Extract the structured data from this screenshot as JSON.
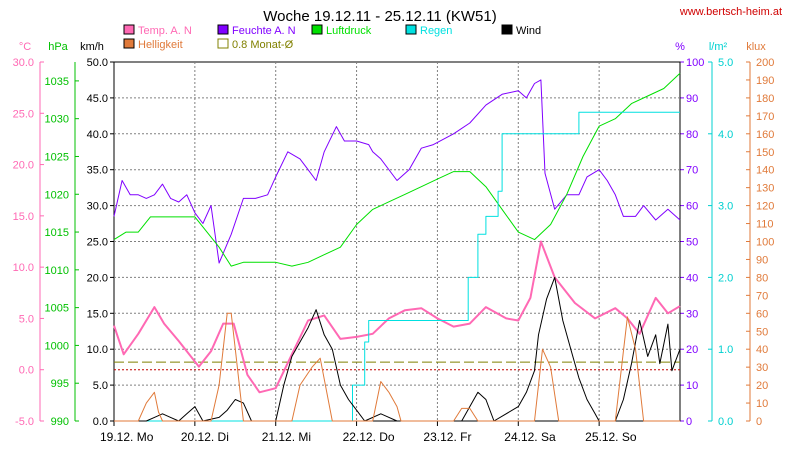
{
  "chart_data": {
    "type": "line",
    "title": "Woche 19.12.11 - 25.12.11 (KW51)",
    "source": "www.bertsch-heim.at",
    "axes": {
      "temp": {
        "unit": "°C",
        "color": "#ff69b4",
        "ticks": [
          "-5.0",
          "0.0",
          "5.0",
          "10.0",
          "15.0",
          "20.0",
          "25.0",
          "30.0"
        ],
        "range": [
          -5,
          30
        ]
      },
      "pressure": {
        "unit": "hPa",
        "color": "#00c000",
        "ticks": [
          "990",
          "995",
          "1000",
          "1005",
          "1010",
          "1015",
          "1020",
          "1025",
          "1030",
          "1035"
        ],
        "range": [
          990,
          1037.5
        ]
      },
      "wind": {
        "unit": "km/h",
        "color": "#000000",
        "ticks": [
          "0.0",
          "5.0",
          "10.0",
          "15.0",
          "20.0",
          "25.0",
          "30.0",
          "35.0",
          "40.0",
          "45.0",
          "50.0"
        ],
        "range": [
          0,
          50
        ]
      },
      "humidity": {
        "unit": "%",
        "color": "#8000ff",
        "ticks": [
          "0",
          "10",
          "20",
          "30",
          "40",
          "50",
          "60",
          "70",
          "80",
          "90",
          "100"
        ],
        "range": [
          0,
          100
        ]
      },
      "rain": {
        "unit": "l/m²",
        "color": "#00d0d0",
        "ticks": [
          "0.0",
          "1.0",
          "2.0",
          "3.0",
          "4.0",
          "5.0"
        ],
        "range": [
          0,
          5
        ]
      },
      "light": {
        "unit": "klux",
        "color": "#e07a3a",
        "ticks": [
          "0",
          "10",
          "20",
          "30",
          "40",
          "50",
          "60",
          "70",
          "80",
          "90",
          "100",
          "110",
          "120",
          "130",
          "140",
          "150",
          "160",
          "170",
          "180",
          "190",
          "200"
        ],
        "range": [
          0,
          200
        ]
      }
    },
    "x_labels": [
      "19.12. Mo",
      "20.12. Di",
      "21.12. Mi",
      "22.12. Do",
      "23.12. Fr",
      "24.12. Sa",
      "25.12. So"
    ],
    "x_unit": "day",
    "x_range": [
      0,
      7
    ],
    "legend": [
      {
        "label": "Temp. A. N",
        "color": "#ff69b4"
      },
      {
        "label": "Helligkeit",
        "color": "#e07a3a"
      },
      {
        "label": "Feuchte A. N",
        "color": "#8000ff"
      },
      {
        "label": "0.8 Monat-Ø",
        "color": "#808000"
      },
      {
        "label": "Luftdruck",
        "color": "#00e000"
      },
      {
        "label": "Regen",
        "color": "#00e0e0"
      },
      {
        "label": "Wind",
        "color": "#000000"
      }
    ],
    "reference_lines": [
      {
        "name": "0.8 Monat-Ø",
        "axis": "wind",
        "value": 8.2,
        "color": "#808000",
        "style": "dashed"
      },
      {
        "name": "Temp 0°C",
        "axis": "temp",
        "value": 0,
        "color": "#c00000",
        "style": "dotted"
      }
    ],
    "series": [
      {
        "name": "Temp. A. N",
        "axis": "temp",
        "color": "#ff69b4",
        "width": 2,
        "points": [
          [
            0,
            4.3
          ],
          [
            0.12,
            1.5
          ],
          [
            0.3,
            3.5
          ],
          [
            0.5,
            6.1
          ],
          [
            0.62,
            4.5
          ],
          [
            0.8,
            2.8
          ],
          [
            1.05,
            0.3
          ],
          [
            1.2,
            1.8
          ],
          [
            1.35,
            4.5
          ],
          [
            1.48,
            4.5
          ],
          [
            1.65,
            -0.5
          ],
          [
            1.8,
            -2.2
          ],
          [
            2.0,
            -1.8
          ],
          [
            2.2,
            1.5
          ],
          [
            2.4,
            4.8
          ],
          [
            2.6,
            5.3
          ],
          [
            2.8,
            3.0
          ],
          [
            3.0,
            3.2
          ],
          [
            3.2,
            3.5
          ],
          [
            3.4,
            5.0
          ],
          [
            3.6,
            5.8
          ],
          [
            3.8,
            6.0
          ],
          [
            4.0,
            5.0
          ],
          [
            4.2,
            4.2
          ],
          [
            4.4,
            4.5
          ],
          [
            4.6,
            6.1
          ],
          [
            4.85,
            5.0
          ],
          [
            5.0,
            4.8
          ],
          [
            5.15,
            7.0
          ],
          [
            5.28,
            12.5
          ],
          [
            5.45,
            9.0
          ],
          [
            5.7,
            6.5
          ],
          [
            5.95,
            5.0
          ],
          [
            6.2,
            6.0
          ],
          [
            6.35,
            5.0
          ],
          [
            6.5,
            3.5
          ],
          [
            6.7,
            7.0
          ],
          [
            6.85,
            5.5
          ],
          [
            7.0,
            6.2
          ]
        ]
      },
      {
        "name": "Feuchte A. N",
        "axis": "humidity",
        "color": "#8000ff",
        "width": 1,
        "points": [
          [
            0,
            57
          ],
          [
            0.1,
            67
          ],
          [
            0.2,
            63
          ],
          [
            0.3,
            63
          ],
          [
            0.4,
            62
          ],
          [
            0.5,
            63
          ],
          [
            0.6,
            66
          ],
          [
            0.7,
            62
          ],
          [
            0.8,
            61
          ],
          [
            0.9,
            63
          ],
          [
            1.0,
            58
          ],
          [
            1.1,
            55
          ],
          [
            1.2,
            60
          ],
          [
            1.3,
            44
          ],
          [
            1.45,
            52
          ],
          [
            1.6,
            62
          ],
          [
            1.75,
            62
          ],
          [
            1.9,
            63
          ],
          [
            2.0,
            68
          ],
          [
            2.15,
            75
          ],
          [
            2.3,
            73
          ],
          [
            2.4,
            70
          ],
          [
            2.5,
            67
          ],
          [
            2.6,
            75
          ],
          [
            2.75,
            82
          ],
          [
            2.85,
            78
          ],
          [
            3.0,
            78
          ],
          [
            3.15,
            77
          ],
          [
            3.2,
            75
          ],
          [
            3.3,
            73
          ],
          [
            3.5,
            67
          ],
          [
            3.65,
            70
          ],
          [
            3.8,
            76
          ],
          [
            3.95,
            77
          ],
          [
            4.2,
            80
          ],
          [
            4.4,
            83
          ],
          [
            4.6,
            88
          ],
          [
            4.8,
            91
          ],
          [
            5.0,
            92
          ],
          [
            5.1,
            90
          ],
          [
            5.2,
            94
          ],
          [
            5.28,
            95
          ],
          [
            5.33,
            69
          ],
          [
            5.45,
            59
          ],
          [
            5.6,
            63
          ],
          [
            5.75,
            63
          ],
          [
            5.85,
            68
          ],
          [
            6.0,
            70
          ],
          [
            6.1,
            67
          ],
          [
            6.2,
            63
          ],
          [
            6.3,
            57
          ],
          [
            6.45,
            57
          ],
          [
            6.55,
            60
          ],
          [
            6.7,
            56
          ],
          [
            6.85,
            59
          ],
          [
            7.0,
            56
          ]
        ]
      },
      {
        "name": "Luftdruck",
        "axis": "pressure",
        "color": "#00e000",
        "width": 1,
        "points": [
          [
            0,
            1014
          ],
          [
            0.15,
            1015
          ],
          [
            0.3,
            1015
          ],
          [
            0.45,
            1017
          ],
          [
            0.6,
            1017
          ],
          [
            0.8,
            1017
          ],
          [
            1.0,
            1017
          ],
          [
            1.15,
            1015
          ],
          [
            1.3,
            1013
          ],
          [
            1.45,
            1010.5
          ],
          [
            1.6,
            1011
          ],
          [
            1.8,
            1011
          ],
          [
            2.0,
            1011
          ],
          [
            2.2,
            1010.5
          ],
          [
            2.4,
            1011
          ],
          [
            2.6,
            1012
          ],
          [
            2.8,
            1013
          ],
          [
            3.0,
            1016
          ],
          [
            3.2,
            1018
          ],
          [
            3.4,
            1019
          ],
          [
            3.6,
            1020
          ],
          [
            3.8,
            1021
          ],
          [
            4.0,
            1022
          ],
          [
            4.2,
            1023
          ],
          [
            4.4,
            1023
          ],
          [
            4.6,
            1021
          ],
          [
            4.8,
            1018
          ],
          [
            5.0,
            1015
          ],
          [
            5.2,
            1014
          ],
          [
            5.4,
            1016
          ],
          [
            5.6,
            1020
          ],
          [
            5.8,
            1025
          ],
          [
            6.0,
            1029
          ],
          [
            6.2,
            1030
          ],
          [
            6.4,
            1032
          ],
          [
            6.6,
            1033
          ],
          [
            6.8,
            1034
          ],
          [
            7.0,
            1036
          ]
        ]
      },
      {
        "name": "Regen",
        "axis": "rain",
        "color": "#00e0e0",
        "width": 1,
        "step": true,
        "points": [
          [
            0,
            0
          ],
          [
            2.5,
            0
          ],
          [
            2.95,
            0.5
          ],
          [
            3.1,
            1.1
          ],
          [
            3.15,
            1.4
          ],
          [
            4.3,
            1.4
          ],
          [
            4.38,
            2.0
          ],
          [
            4.5,
            2.6
          ],
          [
            4.6,
            2.85
          ],
          [
            4.75,
            3.2
          ],
          [
            4.8,
            4.0
          ],
          [
            5.7,
            4.0
          ],
          [
            5.75,
            4.3
          ],
          [
            7.0,
            4.3
          ]
        ]
      },
      {
        "name": "Wind",
        "axis": "wind",
        "color": "#000000",
        "width": 1,
        "points": [
          [
            0,
            0
          ],
          [
            0.4,
            0
          ],
          [
            0.5,
            0.5
          ],
          [
            0.6,
            1.0
          ],
          [
            0.7,
            0.5
          ],
          [
            0.8,
            0
          ],
          [
            0.9,
            1.0
          ],
          [
            1.0,
            2.0
          ],
          [
            1.1,
            0
          ],
          [
            1.3,
            0.5
          ],
          [
            1.4,
            1.5
          ],
          [
            1.5,
            3.0
          ],
          [
            1.6,
            2.5
          ],
          [
            1.7,
            0
          ],
          [
            2.0,
            0
          ],
          [
            2.1,
            5.0
          ],
          [
            2.2,
            9.0
          ],
          [
            2.3,
            11.0
          ],
          [
            2.4,
            13.0
          ],
          [
            2.5,
            15.5
          ],
          [
            2.6,
            12.0
          ],
          [
            2.7,
            10.0
          ],
          [
            2.8,
            5.0
          ],
          [
            2.9,
            3.0
          ],
          [
            3.0,
            1.5
          ],
          [
            3.1,
            0
          ],
          [
            3.3,
            1.0
          ],
          [
            3.5,
            0
          ],
          [
            4.0,
            0
          ],
          [
            4.3,
            0
          ],
          [
            4.4,
            2.0
          ],
          [
            4.5,
            4.0
          ],
          [
            4.6,
            3.0
          ],
          [
            4.7,
            0
          ],
          [
            5.0,
            2.0
          ],
          [
            5.1,
            4.0
          ],
          [
            5.2,
            7.0
          ],
          [
            5.25,
            12.0
          ],
          [
            5.35,
            17.0
          ],
          [
            5.45,
            20.0
          ],
          [
            5.55,
            14.0
          ],
          [
            5.65,
            10.0
          ],
          [
            5.75,
            6.0
          ],
          [
            5.85,
            3.0
          ],
          [
            5.95,
            1.0
          ],
          [
            6.0,
            0
          ],
          [
            6.2,
            0
          ],
          [
            6.3,
            3.0
          ],
          [
            6.4,
            8.0
          ],
          [
            6.5,
            14.0
          ],
          [
            6.6,
            9.0
          ],
          [
            6.7,
            12.0
          ],
          [
            6.75,
            8.0
          ],
          [
            6.85,
            13.5
          ],
          [
            6.9,
            7.0
          ],
          [
            7.0,
            10.0
          ]
        ]
      },
      {
        "name": "Helligkeit",
        "axis": "light",
        "color": "#e07a3a",
        "width": 1,
        "points": [
          [
            0,
            0
          ],
          [
            0.3,
            0
          ],
          [
            0.4,
            10
          ],
          [
            0.5,
            16
          ],
          [
            0.55,
            5
          ],
          [
            0.6,
            0
          ],
          [
            1.2,
            0
          ],
          [
            1.3,
            20
          ],
          [
            1.4,
            60
          ],
          [
            1.45,
            60
          ],
          [
            1.5,
            40
          ],
          [
            1.6,
            0
          ],
          [
            2.2,
            0
          ],
          [
            2.3,
            20
          ],
          [
            2.45,
            30
          ],
          [
            2.55,
            35
          ],
          [
            2.7,
            0
          ],
          [
            3.2,
            0
          ],
          [
            3.3,
            22
          ],
          [
            3.4,
            16
          ],
          [
            3.5,
            8
          ],
          [
            3.55,
            0
          ],
          [
            4.2,
            0
          ],
          [
            4.3,
            7
          ],
          [
            4.4,
            7
          ],
          [
            4.5,
            0
          ],
          [
            5.2,
            0
          ],
          [
            5.3,
            40
          ],
          [
            5.4,
            30
          ],
          [
            5.5,
            0
          ],
          [
            6.2,
            0
          ],
          [
            6.35,
            58
          ],
          [
            6.45,
            40
          ],
          [
            6.5,
            20
          ],
          [
            6.55,
            0
          ],
          [
            7.0,
            0
          ]
        ]
      }
    ]
  }
}
